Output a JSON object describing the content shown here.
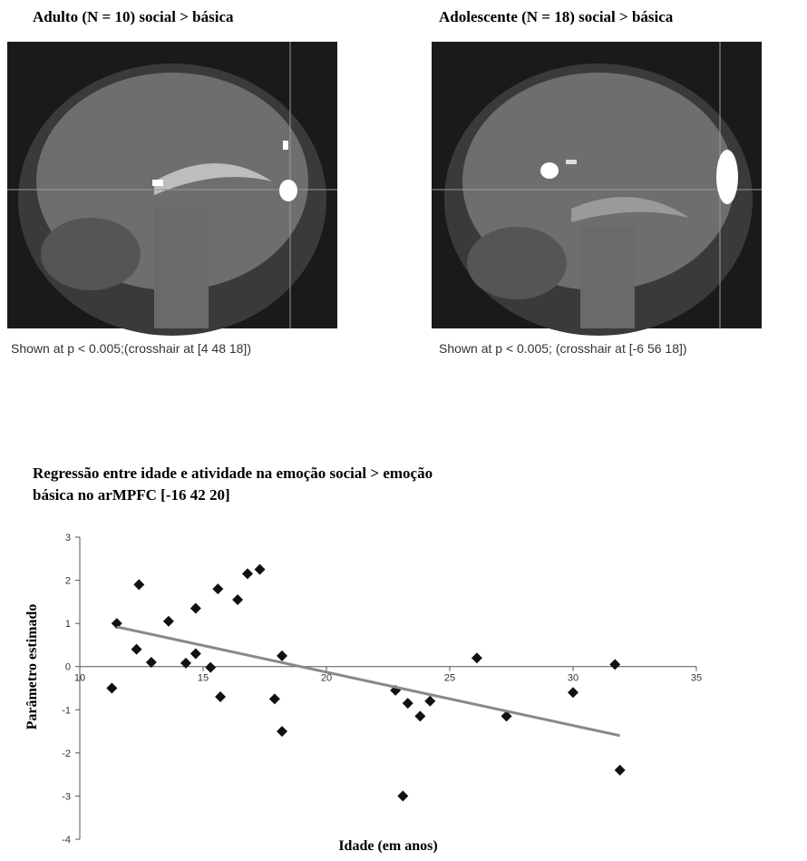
{
  "panels": [
    {
      "title": "Adulto (N = 10) social > básica",
      "caption": "Shown at p < 0.005;(crosshair at [4 48 18])"
    },
    {
      "title": "Adolescente (N = 18) social > básica",
      "caption": "Shown at p < 0.005; (crosshair at [-6 56 18])"
    }
  ],
  "chart_data": {
    "type": "scatter",
    "title": [
      "Regressão entre idade e atividade na emoção social > emoção",
      "básica no arMPFC [-16 42 20]"
    ],
    "x_label": "Idade (em anos)",
    "y_label": "Parâmetro estimado",
    "x": [
      11.3,
      11.5,
      12.4,
      12.3,
      12.9,
      13.6,
      14.3,
      14.7,
      14.7,
      15.3,
      15.6,
      15.7,
      16.4,
      16.8,
      17.3,
      17.9,
      18.2,
      18.2,
      22.8,
      23.3,
      23.1,
      23.8,
      24.2,
      26.1,
      27.3,
      30.0,
      31.7,
      31.9
    ],
    "values": [
      -0.5,
      1.0,
      1.9,
      0.4,
      0.1,
      1.05,
      0.08,
      1.35,
      0.3,
      -0.02,
      1.8,
      -0.7,
      1.55,
      2.15,
      2.25,
      -0.75,
      0.25,
      -1.5,
      -0.55,
      -0.85,
      -3.0,
      -1.15,
      -0.8,
      0.2,
      -1.15,
      -0.6,
      0.05,
      -2.4
    ],
    "color": "#111111",
    "trend": {
      "x": [
        11.5,
        31.9
      ],
      "values": [
        0.92,
        -1.6
      ],
      "color": "#888888"
    },
    "xlim": [
      10,
      35
    ],
    "xticks": [
      10,
      15,
      20,
      25,
      30,
      35
    ],
    "ylim": [
      -4,
      3
    ],
    "yticks": [
      -4,
      -3,
      -2,
      -1,
      0,
      1,
      2,
      3
    ]
  }
}
